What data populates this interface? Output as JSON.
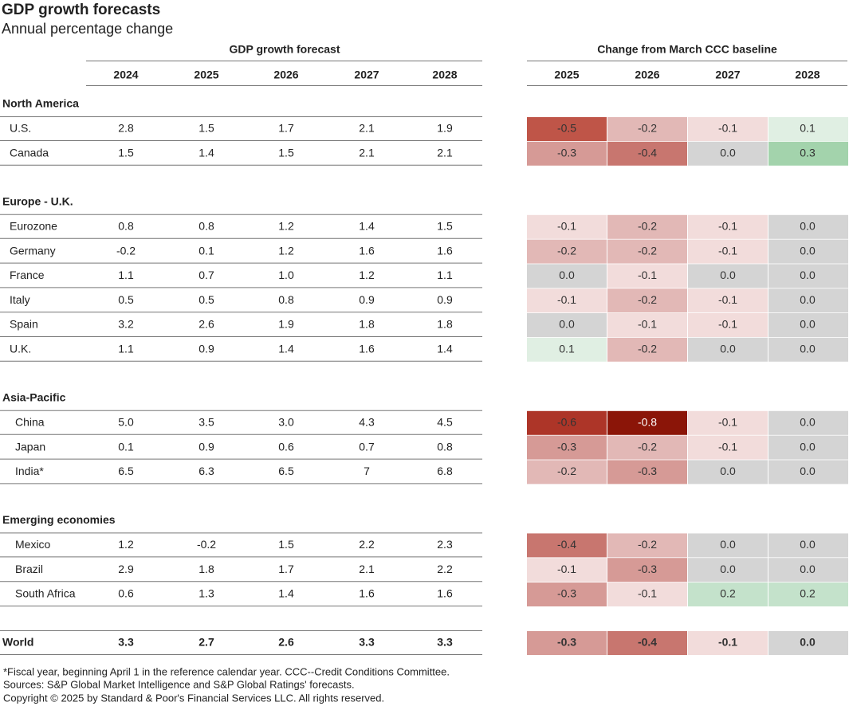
{
  "header": {
    "title": "GDP growth forecasts",
    "subtitle": "Annual percentage change"
  },
  "table": {
    "group_headers": [
      "GDP growth forecast",
      "Change from March CCC baseline"
    ],
    "forecast_years": [
      2024,
      2025,
      2026,
      2027,
      2028
    ],
    "change_years": [
      2025,
      2026,
      2027,
      2028
    ],
    "sections": [
      {
        "name": "North America",
        "rows": [
          {
            "label": "U.S.",
            "forecast": [
              "2.8",
              "1.5",
              "1.7",
              "2.1",
              "1.9"
            ],
            "change": [
              "-0.5",
              "-0.2",
              "-0.1",
              "0.1"
            ]
          },
          {
            "label": "Canada",
            "forecast": [
              "1.5",
              "1.4",
              "1.5",
              "2.1",
              "2.1"
            ],
            "change": [
              "-0.3",
              "-0.4",
              "0.0",
              "0.3"
            ]
          }
        ]
      },
      {
        "name": "Europe - U.K.",
        "rows": [
          {
            "label": "Eurozone",
            "forecast": [
              "0.8",
              "0.8",
              "1.2",
              "1.4",
              "1.5"
            ],
            "change": [
              "-0.1",
              "-0.2",
              "-0.1",
              "0.0"
            ]
          },
          {
            "label": "Germany",
            "forecast": [
              "-0.2",
              "0.1",
              "1.2",
              "1.6",
              "1.6"
            ],
            "change": [
              "-0.2",
              "-0.2",
              "-0.1",
              "0.0"
            ]
          },
          {
            "label": "France",
            "forecast": [
              "1.1",
              "0.7",
              "1.0",
              "1.2",
              "1.1"
            ],
            "change": [
              "0.0",
              "-0.1",
              "0.0",
              "0.0"
            ]
          },
          {
            "label": "Italy",
            "forecast": [
              "0.5",
              "0.5",
              "0.8",
              "0.9",
              "0.9"
            ],
            "change": [
              "-0.1",
              "-0.2",
              "-0.1",
              "0.0"
            ]
          },
          {
            "label": "Spain",
            "forecast": [
              "3.2",
              "2.6",
              "1.9",
              "1.8",
              "1.8"
            ],
            "change": [
              "0.0",
              "-0.1",
              "-0.1",
              "0.0"
            ]
          },
          {
            "label": "U.K.",
            "forecast": [
              "1.1",
              "0.9",
              "1.4",
              "1.6",
              "1.4"
            ],
            "change": [
              "0.1",
              "-0.2",
              "0.0",
              "0.0"
            ]
          }
        ]
      },
      {
        "name": "Asia-Pacific",
        "rows": [
          {
            "label": "China",
            "forecast": [
              "5.0",
              "3.5",
              "3.0",
              "4.3",
              "4.5"
            ],
            "change": [
              "-0.6",
              "-0.8",
              "-0.1",
              "0.0"
            ]
          },
          {
            "label": "Japan",
            "forecast": [
              "0.1",
              "0.9",
              "0.6",
              "0.7",
              "0.8"
            ],
            "change": [
              "-0.3",
              "-0.2",
              "-0.1",
              "0.0"
            ]
          },
          {
            "label": "India*",
            "forecast": [
              "6.5",
              "6.3",
              "6.5",
              "7",
              "6.8"
            ],
            "change": [
              "-0.2",
              "-0.3",
              "0.0",
              "0.0"
            ]
          }
        ]
      },
      {
        "name": "Emerging economies",
        "rows": [
          {
            "label": "Mexico",
            "forecast": [
              "1.2",
              "-0.2",
              "1.5",
              "2.2",
              "2.3"
            ],
            "change": [
              "-0.4",
              "-0.2",
              "0.0",
              "0.0"
            ]
          },
          {
            "label": "Brazil",
            "forecast": [
              "2.9",
              "1.8",
              "1.7",
              "2.1",
              "2.2"
            ],
            "change": [
              "-0.1",
              "-0.3",
              "0.0",
              "0.0"
            ]
          },
          {
            "label": "South Africa",
            "forecast": [
              "0.6",
              "1.3",
              "1.4",
              "1.6",
              "1.6"
            ],
            "change": [
              "-0.3",
              "-0.1",
              "0.2",
              "0.2"
            ]
          }
        ]
      }
    ],
    "total": {
      "label": "World",
      "forecast": [
        "3.3",
        "2.7",
        "2.6",
        "3.3",
        "3.3"
      ],
      "change": [
        "-0.3",
        "-0.4",
        "-0.1",
        "0.0"
      ]
    }
  },
  "footnotes": [
    "*Fiscal year, beginning April 1 in the reference calendar year. CCC--Credit Conditions Committee.",
    "Sources: S&P Global Market Intelligence and S&P Global Ratings' forecasts.",
    "Copyright © 2025 by Standard & Poor's Financial Services LLC. All rights reserved."
  ]
}
